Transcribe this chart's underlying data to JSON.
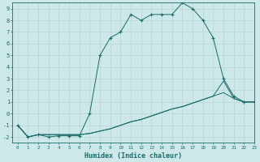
{
  "xlabel": "Humidex (Indice chaleur)",
  "xlim": [
    -0.5,
    23
  ],
  "ylim": [
    -2.5,
    9.5
  ],
  "xticks": [
    0,
    1,
    2,
    3,
    4,
    5,
    6,
    7,
    8,
    9,
    10,
    11,
    12,
    13,
    14,
    15,
    16,
    17,
    18,
    19,
    20,
    21,
    22,
    23
  ],
  "yticks": [
    -2,
    -1,
    0,
    1,
    2,
    3,
    4,
    5,
    6,
    7,
    8,
    9
  ],
  "bg_color": "#cde8e8",
  "grid_color": "#b8d4d4",
  "line_color": "#1a6b6b",
  "line1_x": [
    0,
    1,
    2,
    3,
    4,
    5,
    6,
    7,
    8,
    9,
    10,
    11,
    12,
    13,
    14,
    15,
    16,
    17,
    18,
    19,
    20,
    21,
    22,
    23
  ],
  "line1_y": [
    -1,
    -2,
    -1.8,
    -2,
    -1.9,
    -1.9,
    -1.9,
    0,
    5,
    6.5,
    7,
    8.5,
    8,
    8.5,
    8.5,
    8.5,
    9.5,
    9,
    8,
    6.5,
    3,
    1.5,
    1,
    1
  ],
  "line2_x": [
    0,
    1,
    2,
    3,
    4,
    5,
    6,
    7,
    8,
    9,
    10,
    11,
    12,
    13,
    14,
    15,
    16,
    17,
    18,
    19,
    20,
    21,
    22,
    23
  ],
  "line2_y": [
    -1,
    -2,
    -1.8,
    -1.8,
    -1.8,
    -1.8,
    -1.8,
    -1.7,
    -1.5,
    -1.3,
    -1.0,
    -0.7,
    -0.5,
    -0.2,
    0.1,
    0.4,
    0.6,
    0.9,
    1.2,
    1.5,
    1.8,
    1.3,
    1.0,
    1.0
  ],
  "line3_x": [
    0,
    1,
    2,
    3,
    4,
    5,
    6,
    7,
    8,
    9,
    10,
    11,
    12,
    13,
    14,
    15,
    16,
    17,
    18,
    19,
    20,
    21,
    22,
    23
  ],
  "line3_y": [
    -1,
    -2,
    -1.8,
    -1.8,
    -1.8,
    -1.8,
    -1.8,
    -1.7,
    -1.5,
    -1.3,
    -1.0,
    -0.7,
    -0.5,
    -0.2,
    0.1,
    0.4,
    0.6,
    0.9,
    1.2,
    1.5,
    2.8,
    1.3,
    1.0,
    1.0
  ]
}
